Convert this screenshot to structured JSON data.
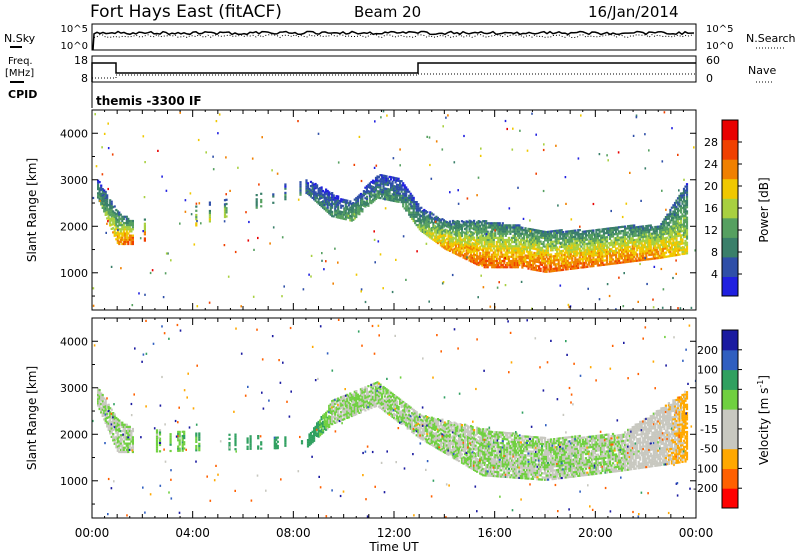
{
  "header": {
    "station": "Fort Hays East (fitACF)",
    "beam": "Beam 20",
    "date": "16/Jan/2014"
  },
  "noise_panel": {
    "left_label": "N.Sky",
    "right_label": "N.Search",
    "left_ticks": [
      "10^5",
      "10^0"
    ],
    "right_ticks": [
      "10^5",
      "10^0"
    ]
  },
  "freq_panel": {
    "left_label_line1": "Freq.",
    "left_label_line2": "[MHz]",
    "right_label": "Nave",
    "left_ticks": [
      "18",
      "8"
    ],
    "right_ticks": [
      "60",
      "0"
    ],
    "cpid_label": "CPID",
    "cpid_value": "themis -3300 IF"
  },
  "colors": {
    "power_scale": [
      "#2020e0",
      "#2f4fa8",
      "#3a7f6a",
      "#56a060",
      "#a8d040",
      "#f0c800",
      "#f08000",
      "#f04000",
      "#e80000"
    ],
    "velocity_scale": [
      "#ff0000",
      "#ff6000",
      "#ffa800",
      "#c8c8c0",
      "#c8c8c0",
      "#70d040",
      "#30a060",
      "#305fc0",
      "#1a1aa0"
    ]
  },
  "chart_data": [
    {
      "type": "heatmap",
      "name": "power",
      "xlabel": "",
      "ylabel": "Slant Range [km]",
      "xlim_hours": [
        0,
        24
      ],
      "ylim": [
        200,
        4500
      ],
      "yticks": [
        "1000",
        "2000",
        "3000",
        "4000"
      ],
      "colorbar": {
        "label": "Power [dB]",
        "ticks": [
          "4",
          "8",
          "12",
          "16",
          "20",
          "24",
          "28"
        ],
        "range": [
          0,
          32
        ]
      },
      "echo_bands": [
        {
          "t": 0.2,
          "r_low": 2600,
          "r_high": 3000,
          "power": 10
        },
        {
          "t": 1.0,
          "r_low": 1600,
          "r_high": 2300,
          "power": 22
        },
        {
          "t": 1.6,
          "r_low": 1600,
          "r_high": 2100,
          "power": 26
        },
        {
          "t": 8.5,
          "r_low": 2700,
          "r_high": 3000,
          "power": 8
        },
        {
          "t": 9.5,
          "r_low": 2200,
          "r_high": 2700,
          "power": 10
        },
        {
          "t": 10.3,
          "r_low": 2100,
          "r_high": 2500,
          "power": 14
        },
        {
          "t": 11.3,
          "r_low": 2600,
          "r_high": 3100,
          "power": 10
        },
        {
          "t": 12.2,
          "r_low": 2500,
          "r_high": 3000,
          "power": 10
        },
        {
          "t": 13.0,
          "r_low": 1900,
          "r_high": 2400,
          "power": 14
        },
        {
          "t": 14.0,
          "r_low": 1500,
          "r_high": 2100,
          "power": 22
        },
        {
          "t": 15.5,
          "r_low": 1100,
          "r_high": 2100,
          "power": 25
        },
        {
          "t": 17.0,
          "r_low": 1100,
          "r_high": 2000,
          "power": 24
        },
        {
          "t": 18.0,
          "r_low": 1000,
          "r_high": 1900,
          "power": 25
        },
        {
          "t": 19.5,
          "r_low": 1100,
          "r_high": 1900,
          "power": 24
        },
        {
          "t": 21.0,
          "r_low": 1200,
          "r_high": 2000,
          "power": 24
        },
        {
          "t": 22.5,
          "r_low": 1300,
          "r_high": 2000,
          "power": 23
        },
        {
          "t": 23.6,
          "r_low": 1400,
          "r_high": 2900,
          "power": 18
        }
      ]
    },
    {
      "type": "heatmap",
      "name": "velocity",
      "xlabel": "Time UT",
      "ylabel": "Slant Range [km]",
      "xlim_hours": [
        0,
        24
      ],
      "xticks": [
        "00:00",
        "04:00",
        "08:00",
        "12:00",
        "16:00",
        "20:00",
        "00:00"
      ],
      "ylim": [
        200,
        4500
      ],
      "yticks": [
        "1000",
        "2000",
        "3000",
        "4000"
      ],
      "colorbar": {
        "label": "Velocity [m s",
        "label_sup": "-1",
        "label_end": "]",
        "ticks": [
          "200",
          "100",
          "50",
          "15",
          "-15",
          "-50",
          "-100",
          "-200"
        ]
      },
      "echo_bands": [
        {
          "t": 0.2,
          "r_low": 2600,
          "r_high": 3000,
          "velocity": 0
        },
        {
          "t": 1.0,
          "r_low": 1600,
          "r_high": 2300,
          "velocity": 0
        },
        {
          "t": 1.6,
          "r_low": 1600,
          "r_high": 2100,
          "velocity": 0
        },
        {
          "t": 8.5,
          "r_low": 1700,
          "r_high": 1900,
          "velocity": 40
        },
        {
          "t": 9.5,
          "r_low": 2200,
          "r_high": 2700,
          "velocity": 0
        },
        {
          "t": 11.3,
          "r_low": 2600,
          "r_high": 3100,
          "velocity": 0
        },
        {
          "t": 13.0,
          "r_low": 1900,
          "r_high": 2400,
          "velocity": 0
        },
        {
          "t": 15.5,
          "r_low": 1100,
          "r_high": 2100,
          "velocity": 0
        },
        {
          "t": 18.0,
          "r_low": 1000,
          "r_high": 1900,
          "velocity": 0
        },
        {
          "t": 21.0,
          "r_low": 1200,
          "r_high": 2000,
          "velocity": 0
        },
        {
          "t": 23.6,
          "r_low": 1400,
          "r_high": 2900,
          "velocity": -60
        }
      ]
    }
  ]
}
